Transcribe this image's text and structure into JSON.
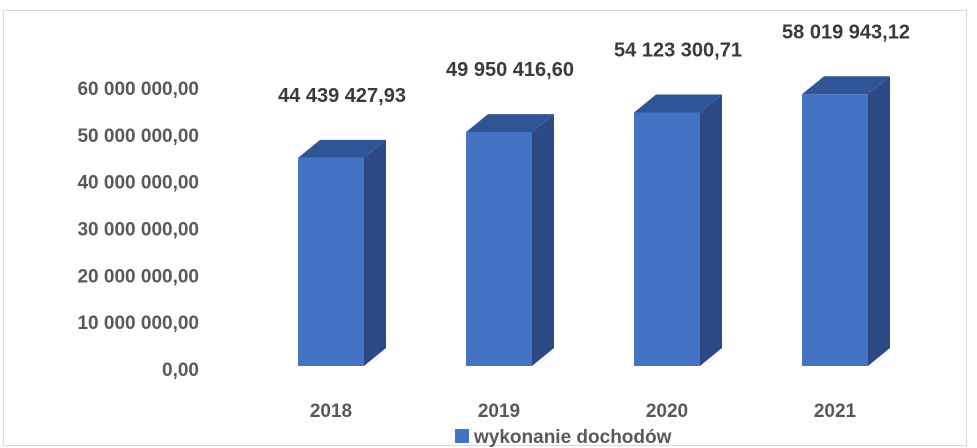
{
  "chart_data": {
    "type": "bar",
    "style": "3d-column",
    "categories": [
      "2018",
      "2019",
      "2020",
      "2021"
    ],
    "series": [
      {
        "name": "wykonanie dochodów",
        "values": [
          44439427.93,
          49950416.6,
          54123300.71,
          58019943.12
        ],
        "data_labels": [
          "44 439 427,93",
          "49 950 416,60",
          "54 123 300,71",
          "58 019 943,12"
        ],
        "color": "#4472c4"
      }
    ],
    "y_ticks": [
      {
        "value": 0,
        "label": "0,00"
      },
      {
        "value": 10000000,
        "label": "10 000 000,00"
      },
      {
        "value": 20000000,
        "label": "20 000 000,00"
      },
      {
        "value": 30000000,
        "label": "30 000 000,00"
      },
      {
        "value": 40000000,
        "label": "40 000 000,00"
      },
      {
        "value": 50000000,
        "label": "50 000 000,00"
      },
      {
        "value": 60000000,
        "label": "60 000 000,00"
      }
    ],
    "ylim": [
      0,
      60000000
    ],
    "grid": false,
    "legend_position": "bottom",
    "colors": {
      "front": "#4472c4",
      "side": "#2e4a86",
      "top": "#2f5597"
    }
  }
}
